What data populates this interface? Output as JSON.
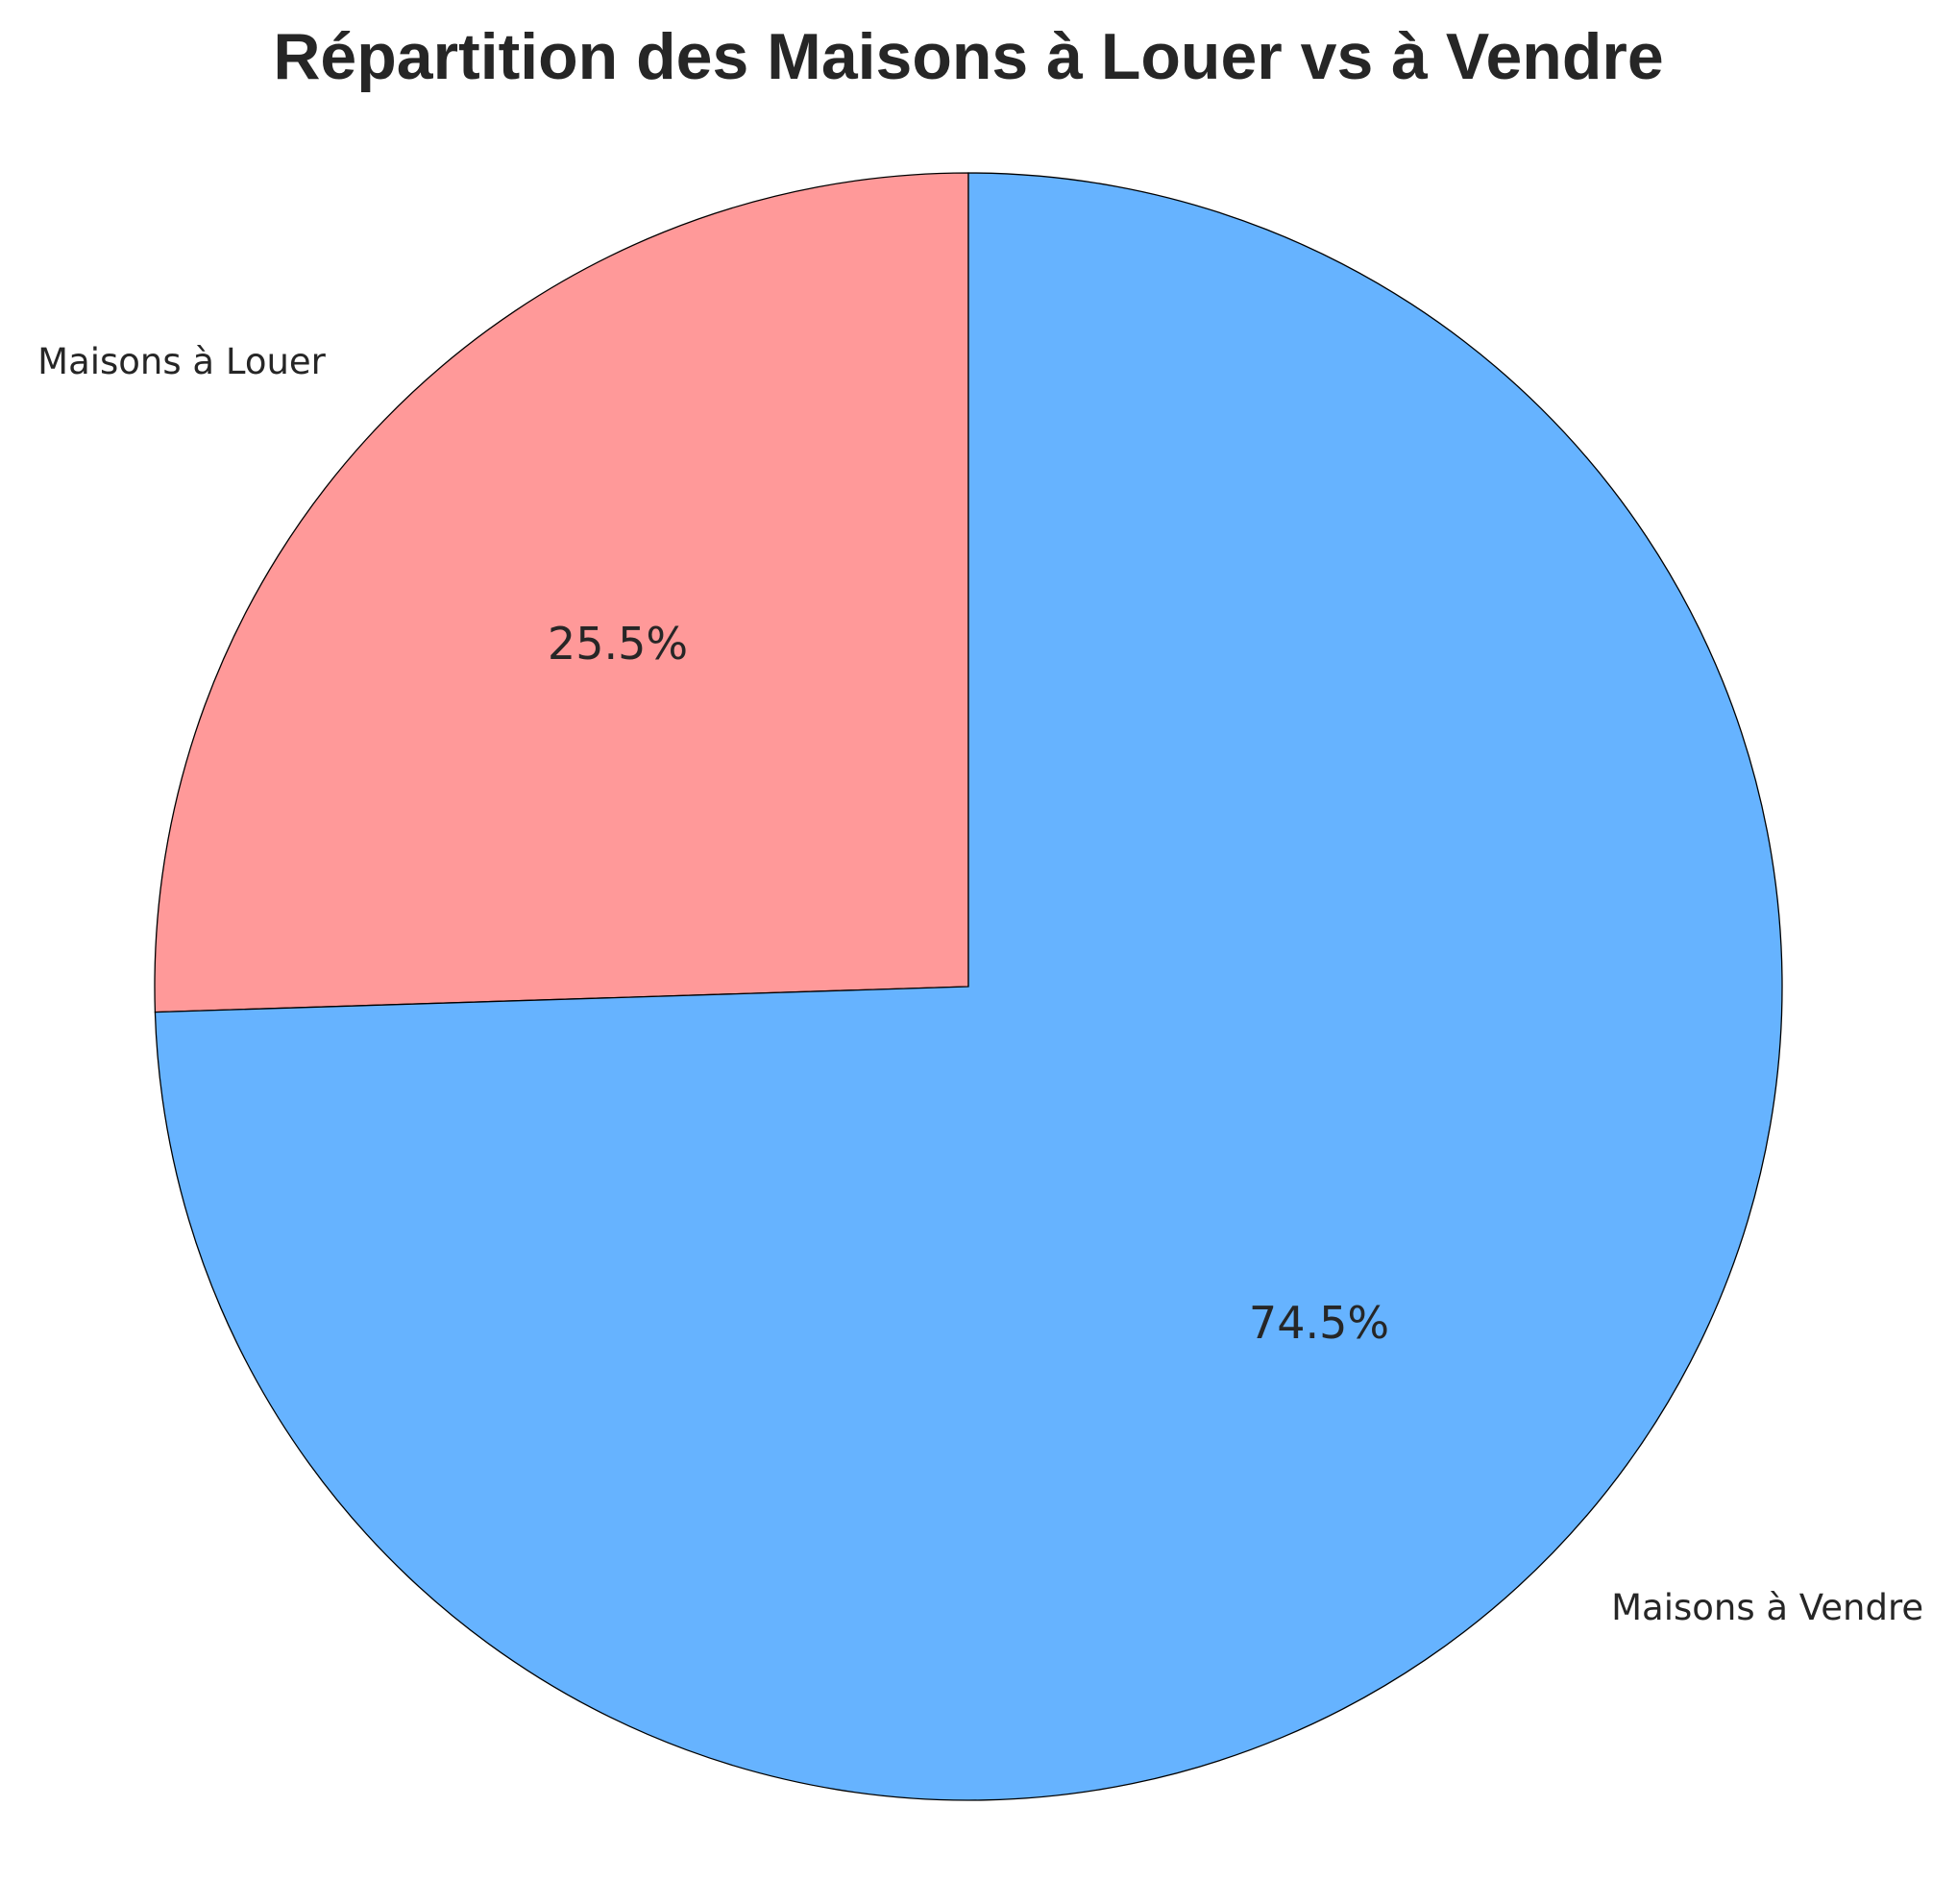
{
  "chart_data": {
    "type": "pie",
    "title": "Répartition des Maisons à Louer vs à Vendre",
    "slices": [
      {
        "label": "Maisons à Louer",
        "value": 25.5,
        "pct_label": "25.5%",
        "color": "#ff9999"
      },
      {
        "label": "Maisons à Vendre",
        "value": 74.5,
        "pct_label": "74.5%",
        "color": "#66b3ff"
      }
    ],
    "start_angle_deg": 90,
    "direction": "counterclockwise",
    "edgecolor": "#000000"
  }
}
